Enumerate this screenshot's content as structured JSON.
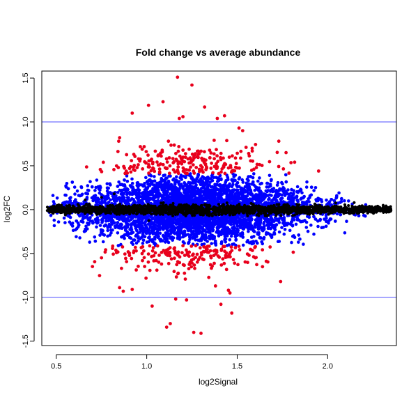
{
  "chart_data": {
    "type": "scatter",
    "title": "Fold change vs average abundance",
    "xlabel": "log2Signal",
    "ylabel": "log2FC",
    "xlim": [
      0.42,
      2.38
    ],
    "ylim": [
      -1.55,
      1.58
    ],
    "x_ticks": [
      0.5,
      1.0,
      1.5,
      2.0
    ],
    "y_ticks": [
      -1.5,
      -1.0,
      -0.5,
      0.0,
      0.5,
      1.0,
      1.5
    ],
    "x_tick_labels": [
      "0.5",
      "1.0",
      "1.5",
      "2.0"
    ],
    "y_tick_labels": [
      "-1.5",
      "-1.0",
      "-0.5",
      "0.0",
      "0.5",
      "1.0",
      "1.5"
    ],
    "hlines": [
      1.0,
      -1.0
    ],
    "grid": false,
    "legend": null,
    "colors": {
      "black_points": "#000000",
      "blue_points": "#0000ff",
      "red_points": "#e8001c",
      "threshold_lines": "#4d4dff"
    },
    "series_description": [
      {
        "color": "black",
        "description": "core points, |log2FC| near 0, spanning log2Signal 0.45 to 2.35"
      },
      {
        "color": "blue",
        "description": "moderate points, |log2FC| up to about 0.4, log2Signal 0.47 to 2.25"
      },
      {
        "color": "red",
        "description": "points with |log2FC| between about 0.4 and 1.5, log2Signal 0.65 to 1.9"
      }
    ],
    "red_points": [
      {
        "x": 1.17,
        "y": 1.51
      },
      {
        "x": 1.25,
        "y": 1.42
      },
      {
        "x": 1.32,
        "y": 1.17
      },
      {
        "x": 1.01,
        "y": 1.19
      },
      {
        "x": 1.09,
        "y": 1.23
      },
      {
        "x": 0.92,
        "y": 1.1
      },
      {
        "x": 1.18,
        "y": 1.04
      },
      {
        "x": 1.2,
        "y": 1.06
      },
      {
        "x": 1.43,
        "y": 1.07
      },
      {
        "x": 1.39,
        "y": 1.04
      },
      {
        "x": 1.51,
        "y": 0.93
      },
      {
        "x": 1.53,
        "y": 0.9
      },
      {
        "x": 0.85,
        "y": 0.82
      },
      {
        "x": 0.76,
        "y": 0.54
      },
      {
        "x": 1.73,
        "y": 0.78
      },
      {
        "x": 1.77,
        "y": 0.65
      },
      {
        "x": 1.95,
        "y": 0.44
      },
      {
        "x": 1.08,
        "y": 0.61
      },
      {
        "x": 1.17,
        "y": 0.45
      },
      {
        "x": 1.11,
        "y": -1.34
      },
      {
        "x": 1.13,
        "y": -1.3
      },
      {
        "x": 1.26,
        "y": -1.4
      },
      {
        "x": 1.3,
        "y": -1.41
      },
      {
        "x": 1.03,
        "y": -1.1
      },
      {
        "x": 1.41,
        "y": -1.08
      },
      {
        "x": 1.47,
        "y": -1.18
      },
      {
        "x": 1.16,
        "y": -1.02
      },
      {
        "x": 1.22,
        "y": -1.03
      },
      {
        "x": 1.46,
        "y": -0.95
      },
      {
        "x": 1.74,
        "y": -0.82
      },
      {
        "x": 0.87,
        "y": -0.93
      },
      {
        "x": 0.85,
        "y": -0.89
      },
      {
        "x": 0.92,
        "y": -0.91
      },
      {
        "x": 0.75,
        "y": -0.55
      },
      {
        "x": 1.38,
        "y": -0.87
      },
      {
        "x": 1.6,
        "y": -0.55
      }
    ]
  }
}
